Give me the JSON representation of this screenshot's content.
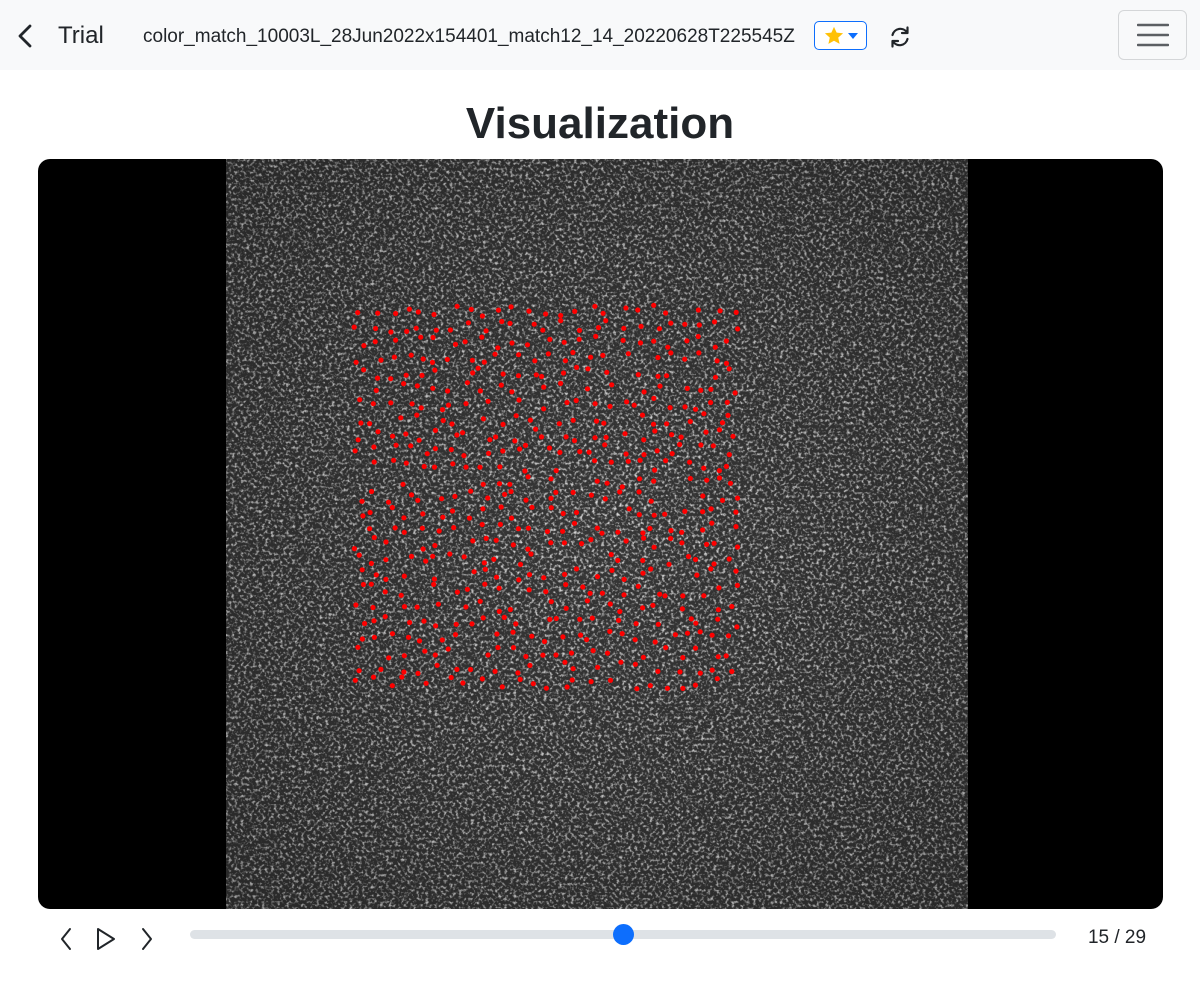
{
  "navbar": {
    "back_icon": "chevron-left-icon",
    "title": "Trial",
    "file_name": "color_match_10003L_28Jun2022x154401_match12_14_20220628T225545Z",
    "favorite_icon": "star-icon",
    "favorite_color": "#ffc107",
    "accent_color": "#0d6efd",
    "refresh_icon": "refresh-icon",
    "menu_icon": "hamburger-menu-icon"
  },
  "page": {
    "heading": "Visualization"
  },
  "player": {
    "prev_icon": "chevron-left-icon",
    "play_icon": "play-icon",
    "next_icon": "chevron-right-icon",
    "current_frame": 15,
    "total_frames": 29,
    "counter_text": "15 / 29",
    "progress_fraction": 0.5
  },
  "visualization": {
    "image": "grayscale retinal photoreceptor mosaic (adaptive optics)",
    "marker_color": "#ff0000"
  }
}
